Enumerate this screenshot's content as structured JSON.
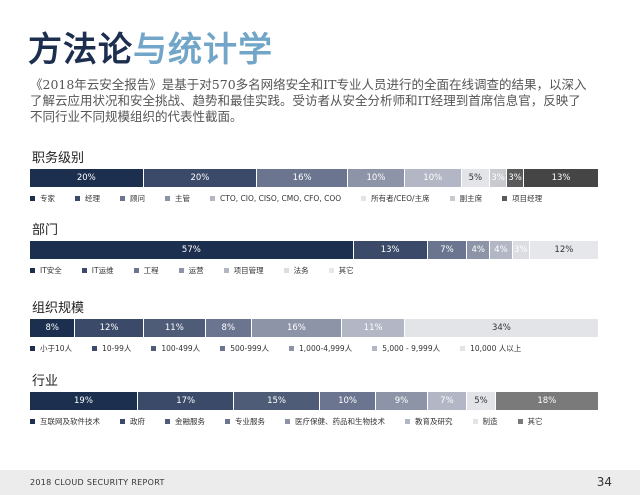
{
  "header": {
    "title_a": "方法论",
    "title_b": "与统计学"
  },
  "intro": "《2018年云安全报告》是基于对570多名网络安全和IT专业人员进行的全面在线调查的结果，以深入了解云应用状况和安全挑战、趋势和最佳实践。受访者从安全分析师和IT经理到首席信息官，反映了不同行业不同规模组织的代表性截面。",
  "chart_data": [
    {
      "type": "stacked_bar",
      "title": "职务级别",
      "series": [
        {
          "name": "专家",
          "color": "#1c2f4f",
          "values": [
            20
          ],
          "value_labels": [
            "20%"
          ]
        },
        {
          "name": "经理",
          "color": "#3b4a68",
          "values": [
            20
          ],
          "value_labels": [
            "20%"
          ]
        },
        {
          "name": "顾问",
          "color": "#6b7590",
          "values": [
            16
          ],
          "value_labels": [
            "16%"
          ]
        },
        {
          "name": "主管",
          "color": "#8e94a8",
          "values": [
            10
          ],
          "value_labels": [
            "10%"
          ]
        },
        {
          "name": "CTO, CIO, CISO, CMO, CFO, COO",
          "color": "#b3b6c4",
          "values": [
            10
          ],
          "value_labels": [
            "10%"
          ]
        },
        {
          "name": "所有者/CEO/主席",
          "color": "#e3e4e8",
          "values": [
            5
          ],
          "value_labels": [
            "5%"
          ]
        },
        {
          "name": "副主席",
          "color": "#c9cacf",
          "values": [
            3
          ],
          "value_labels": [
            "3%"
          ]
        },
        {
          "name": "项目经理",
          "color": "#5a5a5a",
          "values": [
            3
          ],
          "value_labels": [
            "3%"
          ]
        },
        {
          "name": null,
          "color": "#454545",
          "values": [
            13
          ],
          "value_labels": [
            "13%"
          ]
        }
      ]
    },
    {
      "type": "stacked_bar",
      "title": "部门",
      "series": [
        {
          "name": "IT安全",
          "color": "#1c2f4f",
          "values": [
            57
          ],
          "value_labels": [
            "57%"
          ]
        },
        {
          "name": "IT运维",
          "color": "#3b4a68",
          "values": [
            13
          ],
          "value_labels": [
            "13%"
          ]
        },
        {
          "name": "工程",
          "color": "#6b7590",
          "values": [
            7
          ],
          "value_labels": [
            "7%"
          ]
        },
        {
          "name": "运营",
          "color": "#8e94a8",
          "values": [
            4
          ],
          "value_labels": [
            "4%"
          ]
        },
        {
          "name": "项目管理",
          "color": "#b3b6c4",
          "values": [
            4
          ],
          "value_labels": [
            "4%"
          ]
        },
        {
          "name": "法务",
          "color": "#dcdde2",
          "values": [
            3
          ],
          "value_labels": [
            "3%"
          ]
        },
        {
          "name": "其它",
          "color": "#e6e7ea",
          "values": [
            12
          ],
          "value_labels": [
            "12%"
          ]
        }
      ]
    },
    {
      "type": "stacked_bar",
      "title": "组织规模",
      "series": [
        {
          "name": "小于10人",
          "color": "#1c2f4f",
          "values": [
            8
          ],
          "value_labels": [
            "8%"
          ]
        },
        {
          "name": "10-99人",
          "color": "#3b4a68",
          "values": [
            12
          ],
          "value_labels": [
            "12%"
          ]
        },
        {
          "name": "100-499人",
          "color": "#4f5c78",
          "values": [
            11
          ],
          "value_labels": [
            "11%"
          ]
        },
        {
          "name": "500-999人",
          "color": "#6b7590",
          "values": [
            8
          ],
          "value_labels": [
            "8%"
          ]
        },
        {
          "name": "1,000-4,999人",
          "color": "#8e94a8",
          "values": [
            16
          ],
          "value_labels": [
            "16%"
          ]
        },
        {
          "name": "5,000 - 9,999人",
          "color": "#b3b6c4",
          "values": [
            11
          ],
          "value_labels": [
            "11%"
          ]
        },
        {
          "name": "10,000 人以上",
          "color": "#e3e4e8",
          "values": [
            34
          ],
          "value_labels": [
            "34%"
          ]
        }
      ]
    },
    {
      "type": "stacked_bar",
      "title": "行业",
      "series": [
        {
          "name": "互联网及软件技术",
          "color": "#1c2f4f",
          "values": [
            19
          ],
          "value_labels": [
            "19%"
          ]
        },
        {
          "name": "政府",
          "color": "#3b4a68",
          "values": [
            17
          ],
          "value_labels": [
            "17%"
          ]
        },
        {
          "name": "金融服务",
          "color": "#4f5c78",
          "values": [
            15
          ],
          "value_labels": [
            "15%"
          ]
        },
        {
          "name": "专业服务",
          "color": "#6b7590",
          "values": [
            10
          ],
          "value_labels": [
            "10%"
          ]
        },
        {
          "name": "医疗保健、药品和生物技术",
          "color": "#8e94a8",
          "values": [
            9
          ],
          "value_labels": [
            "9%"
          ]
        },
        {
          "name": "教育及研究",
          "color": "#b3b6c4",
          "values": [
            7
          ],
          "value_labels": [
            "7%"
          ]
        },
        {
          "name": "制造",
          "color": "#e3e4e8",
          "values": [
            5
          ],
          "value_labels": [
            "5%"
          ]
        },
        {
          "name": "其它",
          "color": "#7a7a7a",
          "values": [
            18
          ],
          "value_labels": [
            "18%"
          ]
        }
      ]
    }
  ],
  "footer": {
    "report": "2018 CLOUD SECURITY REPORT",
    "page": "34"
  }
}
